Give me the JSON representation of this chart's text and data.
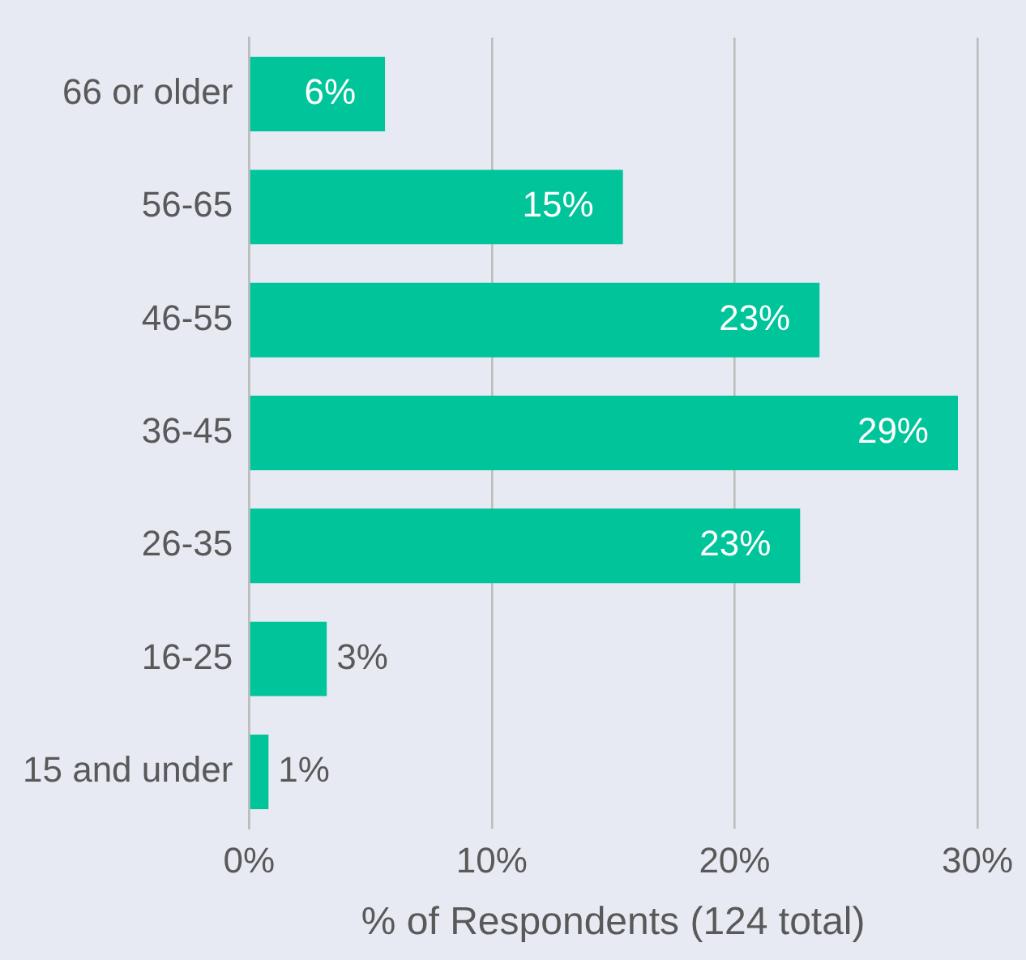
{
  "chart_data": {
    "type": "bar",
    "orientation": "horizontal",
    "xlabel": "% of Respondents (124 total)",
    "categories": [
      "66 or older",
      "56-65",
      "46-55",
      "36-45",
      "26-35",
      "16-25",
      "15 and under"
    ],
    "values": [
      5.6,
      15.4,
      23.5,
      29.2,
      22.7,
      3.2,
      0.8
    ],
    "value_labels": [
      "6%",
      "15%",
      "23%",
      "29%",
      "23%",
      "3%",
      "1%"
    ],
    "color": "#00c49a",
    "xlim": [
      0,
      30
    ],
    "xticks": [
      {
        "value": 0,
        "label": "0%"
      },
      {
        "value": 10,
        "label": "10%"
      },
      {
        "value": 20,
        "label": "20%"
      },
      {
        "value": 30,
        "label": "30%"
      }
    ],
    "grid": "x",
    "legend": false
  }
}
